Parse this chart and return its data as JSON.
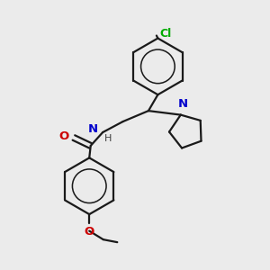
{
  "background_color": "#ebebeb",
  "bond_color": "#1a1a1a",
  "atom_colors": {
    "O": "#cc0000",
    "N": "#0000cc",
    "Cl": "#00aa00",
    "C": "#1a1a1a",
    "H": "#404040"
  },
  "line_width": 1.6,
  "font_size": 8.5,
  "fig_size": [
    3.0,
    3.0
  ],
  "dpi": 100
}
